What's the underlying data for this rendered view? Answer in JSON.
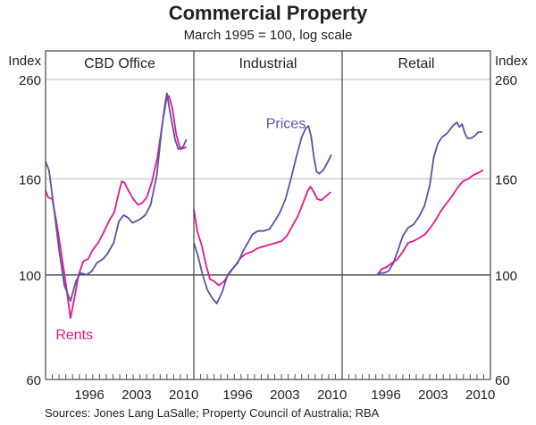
{
  "chart_data": {
    "type": "line",
    "title": "Commercial Property",
    "subtitle": "March 1995 = 100, log scale",
    "source": "Sources: Jones Lang LaSalle; Property Council of Australia; RBA",
    "yscale": "log",
    "ylabel_left": "Index",
    "ylabel_right": "Index",
    "ylim": [
      60,
      260
    ],
    "yticks": [
      60,
      100,
      160,
      260
    ],
    "reference_line": 100,
    "xlim": [
      1990,
      2012
    ],
    "xtick_labels": [
      "1996",
      "2003",
      "2010"
    ],
    "xtick_label_years": [
      1996.5,
      2003.5,
      2010.5
    ],
    "colors": {
      "Prices": "#5454a8",
      "Rents": "#e8168c"
    },
    "annotations": [
      {
        "text": "Rents",
        "panel": 0,
        "series": "Rents",
        "year": 1991.5,
        "value": 73
      },
      {
        "text": "Prices",
        "panel": 1,
        "series": "Prices",
        "year": 2000.7,
        "value": 205
      }
    ],
    "panels": [
      {
        "name": "CBD Office",
        "series": [
          {
            "name": "Prices",
            "x": [
              1990.0,
              1990.5,
              1991.2,
              1992.0,
              1992.8,
              1993.7,
              1994.5,
              1995.2,
              1996.1,
              1996.9,
              1997.6,
              1998.5,
              1999.2,
              2000.1,
              2000.9,
              2001.6,
              2002.3,
              2002.9,
              2003.9,
              2004.8,
              2005.6,
              2006.5,
              2007.2,
              2007.7,
              2008.0,
              2008.5,
              2009.2,
              2009.7,
              2010.4,
              2010.9
            ],
            "values": [
              174,
              167,
              140,
              113,
              95,
              88,
              97,
              101,
              100,
              102,
              106,
              108,
              111,
              117,
              130,
              134,
              132,
              129,
              131,
              134,
              141,
              163,
              202,
              230,
              243,
              220,
              194,
              185,
              187,
              194
            ]
          },
          {
            "name": "Rents",
            "x": [
              1990.0,
              1990.4,
              1991.0,
              1991.6,
              1992.3,
              1993.0,
              1993.7,
              1994.2,
              1994.9,
              1995.6,
              1996.3,
              1997.0,
              1997.8,
              1998.6,
              1999.4,
              2000.2,
              2000.9,
              2001.3,
              2001.7,
              2002.3,
              2003.0,
              2003.7,
              2004.3,
              2005.0,
              2005.8,
              2006.6,
              2007.3,
              2007.9,
              2008.3,
              2008.8,
              2009.4,
              2010.0,
              2010.6,
              2010.9
            ],
            "values": [
              151,
              146,
              145,
              130,
              112,
              96,
              81,
              88,
              100,
              107,
              108,
              113,
              117,
              123,
              130,
              136,
              150,
              158,
              157,
              151,
              145,
              141,
              142,
              146,
              158,
              178,
              208,
              235,
              240,
              226,
              198,
              185,
              186,
              187
            ]
          }
        ]
      },
      {
        "name": "Industrial",
        "series": [
          {
            "name": "Prices",
            "x": [
              1990.0,
              1990.6,
              1991.3,
              1992.0,
              1992.8,
              1993.4,
              1994.2,
              1995.0,
              1995.7,
              1996.5,
              1997.4,
              1998.0,
              1998.7,
              1999.5,
              2000.3,
              2001.2,
              2002.0,
              2002.8,
              2003.6,
              2004.4,
              2005.2,
              2006.0,
              2006.6,
              2007.0,
              2007.4,
              2007.8,
              2008.2,
              2008.6,
              2009.2,
              2009.8,
              2010.4
            ],
            "values": [
              117,
              110,
              100,
              93,
              89,
              87,
              92,
              100,
              103,
              106,
              113,
              117,
              122,
              124,
              124,
              125,
              130,
              136,
              145,
              160,
              178,
              196,
              205,
              207,
              197,
              178,
              166,
              164,
              167,
              173,
              180
            ]
          },
          {
            "name": "Rents",
            "x": [
              1990.0,
              1990.5,
              1991.2,
              1991.8,
              1992.4,
              1993.0,
              1993.7,
              1994.5,
              1995.3,
              1996.2,
              1997.0,
              1997.8,
              1998.6,
              1999.5,
              2000.4,
              2001.3,
              2002.2,
              2003.0,
              2003.8,
              2004.6,
              2005.4,
              2006.2,
              2006.9,
              2007.3,
              2007.8,
              2008.3,
              2008.9,
              2009.6,
              2010.3
            ],
            "values": [
              138,
              124,
              115,
              105,
              98,
              97,
              95,
              97,
              101,
              105,
              109,
              111,
              112,
              114,
              115,
              116,
              117,
              118,
              121,
              127,
              133,
              142,
              151,
              154,
              150,
              145,
              144,
              147,
              150
            ]
          }
        ]
      },
      {
        "name": "Retail",
        "series": [
          {
            "name": "Prices",
            "x": [
              1995.2,
              1995.6,
              1996.2,
              1996.9,
              1997.6,
              1998.3,
              1999.0,
              1999.8,
              2000.6,
              2001.4,
              2002.2,
              2003.0,
              2003.6,
              2004.2,
              2004.8,
              2005.6,
              2006.4,
              2007.0,
              2007.4,
              2007.8,
              2008.2,
              2008.6,
              2009.1,
              2009.6,
              2010.2,
              2010.8
            ],
            "values": [
              100,
              101,
              101,
              102,
              106,
              113,
              121,
              126,
              128,
              133,
              140,
              155,
              178,
              190,
              196,
              200,
              207,
              211,
              206,
              209,
              200,
              195,
              195,
              197,
              201,
              201
            ]
          },
          {
            "name": "Rents",
            "x": [
              1995.2,
              1995.9,
              1996.6,
              1997.4,
              1998.2,
              1999.0,
              1999.8,
              2000.6,
              2001.5,
              2002.3,
              2003.1,
              2003.9,
              2004.7,
              2005.5,
              2006.3,
              2007.1,
              2007.9,
              2008.7,
              2009.5,
              2010.3,
              2010.9
            ],
            "values": [
              100,
              103,
              104,
              106,
              108,
              112,
              117,
              118,
              120,
              122,
              126,
              131,
              137,
              142,
              147,
              153,
              158,
              160,
              163,
              165,
              167
            ]
          }
        ]
      }
    ]
  }
}
